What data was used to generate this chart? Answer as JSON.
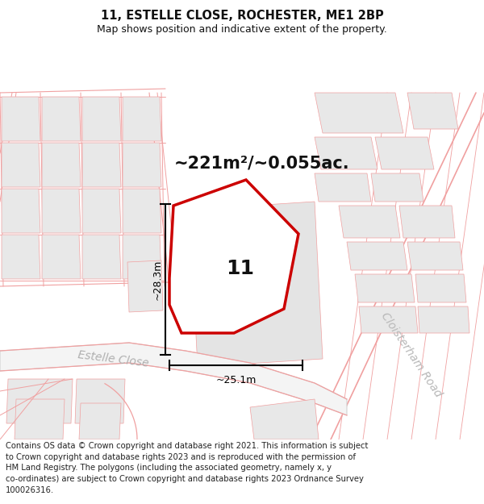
{
  "title_line1": "11, ESTELLE CLOSE, ROCHESTER, ME1 2BP",
  "title_line2": "Map shows position and indicative extent of the property.",
  "area_label": "~221m²/~0.055ac.",
  "plot_number": "11",
  "dim_height": "~28.3m",
  "dim_width": "~25.1m",
  "road_label1": "Estelle Close",
  "road_label2": "Cloisterham Road",
  "copyright_text": "Contains OS data © Crown copyright and database right 2021. This information is subject\nto Crown copyright and database rights 2023 and is reproduced with the permission of\nHM Land Registry. The polygons (including the associated geometry, namely x, y\nco-ordinates) are subject to Crown copyright and database rights 2023 Ordnance Survey\n100026316.",
  "bg_color": "#ffffff",
  "map_bg": "#ffffff",
  "road_color": "#f0a0a0",
  "building_color": "#e8e8e8",
  "highlight_color": "#cc0000",
  "dim_line_color": "#000000",
  "text_color": "#000000",
  "road_text_color": "#c0c0c0",
  "title_fontsize": 10.5,
  "subtitle_fontsize": 9,
  "area_fontsize": 15,
  "plot_num_fontsize": 18,
  "road_label_fontsize": 10,
  "copyright_fontsize": 7.2
}
